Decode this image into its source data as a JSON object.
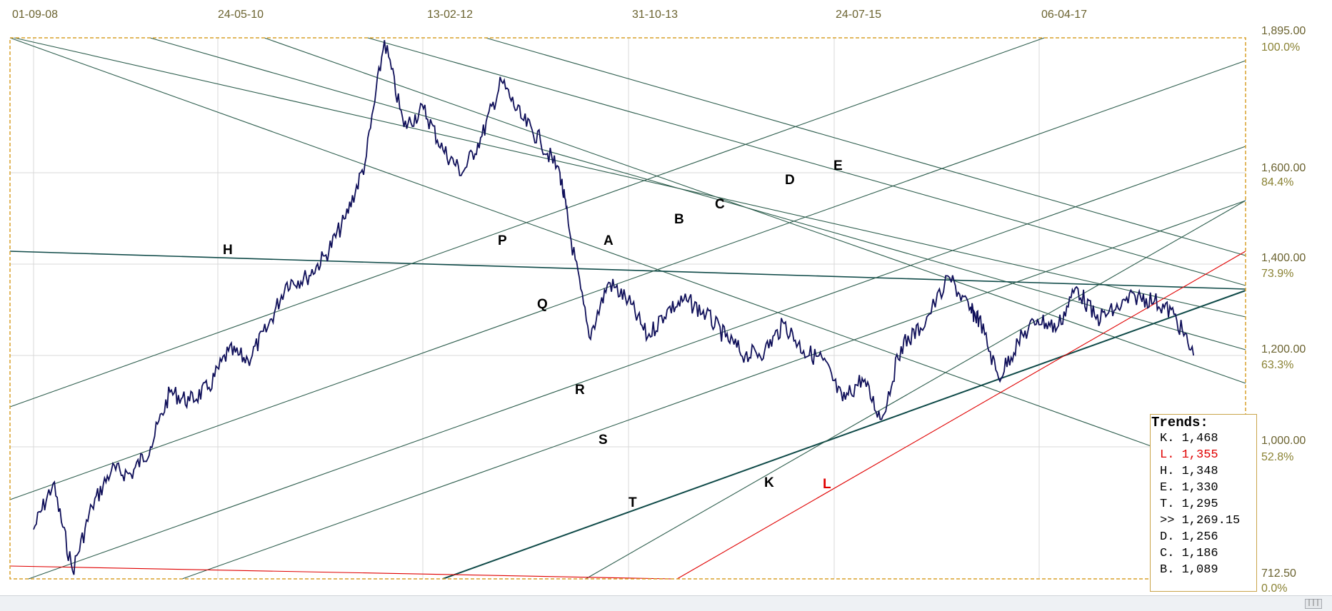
{
  "chart_data": {
    "type": "line",
    "x_tick_labels": [
      "01-09-08",
      "24-05-10",
      "13-02-12",
      "31-10-13",
      "24-07-15",
      "06-04-17"
    ],
    "y_price_labels": [
      "1,895.00",
      "1,600.00",
      "1,400.00",
      "1,200.00",
      "1,000.00",
      "712.50"
    ],
    "y_percent_labels": [
      "100.0%",
      "84.4%",
      "73.9%",
      "63.3%",
      "52.8%",
      "0.0%"
    ],
    "ylim": [
      712.5,
      1895.0
    ],
    "series": [
      {
        "x": [
          "01-09-08",
          "01-11-08",
          "01-01-09",
          "01-03-09",
          "01-05-09",
          "01-07-09",
          "01-09-09",
          "01-11-09",
          "01-01-10",
          "01-03-10",
          "01-05-10",
          "01-07-10",
          "01-09-10",
          "01-11-10",
          "01-01-11",
          "01-03-11",
          "01-05-11",
          "01-07-11",
          "01-09-11",
          "01-11-11",
          "01-01-12",
          "01-03-12",
          "01-05-12",
          "01-07-12",
          "01-09-12",
          "01-11-12",
          "01-01-13",
          "01-03-13",
          "01-04-13",
          "01-06-13",
          "01-08-13",
          "01-10-13",
          "01-12-13",
          "01-02-14",
          "01-04-14",
          "01-06-14",
          "01-08-14",
          "01-10-14",
          "01-12-14",
          "01-02-15",
          "01-04-15",
          "01-06-15",
          "01-08-15",
          "01-10-15",
          "01-12-15",
          "01-02-16",
          "01-04-16",
          "01-07-16",
          "01-09-16",
          "01-10-16",
          "01-12-16",
          "01-02-17",
          "01-04-17",
          "01-06-17",
          "01-08-17",
          "01-10-17",
          "01-12-17",
          "01-02-18",
          "01-04-18",
          "01-06-18",
          "01-08-18"
        ],
        "y": [
          820,
          920,
          730,
          870,
          950,
          940,
          1000,
          1120,
          1100,
          1130,
          1210,
          1190,
          1260,
          1360,
          1370,
          1420,
          1500,
          1620,
          1890,
          1700,
          1740,
          1650,
          1600,
          1680,
          1800,
          1720,
          1670,
          1600,
          1470,
          1240,
          1360,
          1320,
          1240,
          1300,
          1320,
          1290,
          1240,
          1200,
          1210,
          1270,
          1210,
          1190,
          1100,
          1150,
          1060,
          1220,
          1260,
          1370,
          1300,
          1280,
          1150,
          1230,
          1280,
          1260,
          1350,
          1280,
          1300,
          1330,
          1320,
          1290,
          1200
        ]
      }
    ],
    "trend_labels": [
      "H",
      "P",
      "Q",
      "A",
      "R",
      "S",
      "T",
      "B",
      "C",
      "D",
      "E",
      "K",
      "L"
    ],
    "trends_panel": {
      "title": "Trends:",
      "rows": [
        {
          "label": "K.",
          "value": "1,468",
          "color": "#000000"
        },
        {
          "label": "L.",
          "value": "1,355",
          "color": "#e00000"
        },
        {
          "label": "H.",
          "value": "1,348",
          "color": "#000000"
        },
        {
          "label": "E.",
          "value": "1,330",
          "color": "#000000"
        },
        {
          "label": "T.",
          "value": "1,295",
          "color": "#000000"
        },
        {
          "label": ">>",
          "value": "1,269.15",
          "color": "#000000"
        },
        {
          "label": "D.",
          "value": "1,256",
          "color": "#000000"
        },
        {
          "label": "C.",
          "value": "1,186",
          "color": "#000000"
        },
        {
          "label": "B.",
          "value": "1,089",
          "color": "#000000"
        }
      ]
    },
    "grid": true,
    "colors": {
      "price": "#10105a",
      "trend": "#2e5e4e",
      "red_trend": "#e00000",
      "border": "#d9a12a",
      "grid": "#d8d8d8"
    }
  },
  "scrollbar": {
    "thumb_icon": "|||"
  }
}
